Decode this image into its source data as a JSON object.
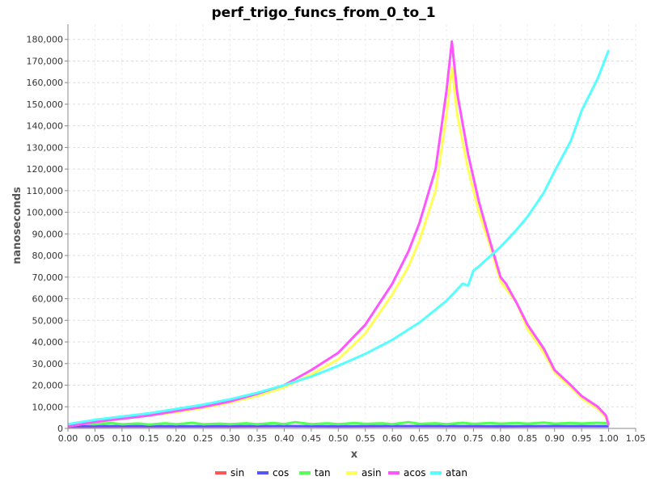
{
  "chart_data": {
    "type": "line",
    "title": "perf_trigo_funcs_from_0_to_1",
    "xlabel": "x",
    "ylabel": "nanoseconds",
    "xlim": [
      0,
      1.05
    ],
    "ylim": [
      0,
      187000
    ],
    "x_ticks": [
      "0.00",
      "0.05",
      "0.10",
      "0.15",
      "0.20",
      "0.25",
      "0.30",
      "0.35",
      "0.40",
      "0.45",
      "0.50",
      "0.55",
      "0.60",
      "0.65",
      "0.70",
      "0.75",
      "0.80",
      "0.85",
      "0.90",
      "0.95",
      "1.00",
      "1.05"
    ],
    "y_ticks": [
      "0",
      "10,000",
      "20,000",
      "30,000",
      "40,000",
      "50,000",
      "60,000",
      "70,000",
      "80,000",
      "90,000",
      "100,000",
      "110,000",
      "120,000",
      "130,000",
      "140,000",
      "150,000",
      "160,000",
      "170,000",
      "180,000"
    ],
    "grid": true,
    "legend": "bottom",
    "series": [
      {
        "name": "sin",
        "color": "#ff5555",
        "x": [
          0,
          0.1,
          0.2,
          0.3,
          0.4,
          0.5,
          0.6,
          0.7,
          0.8,
          0.9,
          1.0
        ],
        "y": [
          800,
          900,
          900,
          900,
          1000,
          900,
          1000,
          1000,
          900,
          1000,
          1000
        ]
      },
      {
        "name": "cos",
        "color": "#5555ff",
        "x": [
          0,
          0.1,
          0.2,
          0.3,
          0.4,
          0.5,
          0.6,
          0.7,
          0.8,
          0.9,
          1.0
        ],
        "y": [
          1000,
          1100,
          1000,
          1100,
          1100,
          1000,
          1100,
          1100,
          1000,
          1100,
          1000
        ]
      },
      {
        "name": "tan",
        "color": "#55ff55",
        "x": [
          0,
          0.02,
          0.05,
          0.08,
          0.1,
          0.13,
          0.15,
          0.18,
          0.2,
          0.23,
          0.25,
          0.28,
          0.3,
          0.33,
          0.35,
          0.38,
          0.4,
          0.42,
          0.45,
          0.48,
          0.5,
          0.53,
          0.55,
          0.58,
          0.6,
          0.63,
          0.65,
          0.68,
          0.7,
          0.73,
          0.75,
          0.78,
          0.8,
          0.83,
          0.85,
          0.88,
          0.9,
          0.93,
          0.95,
          0.98,
          1.0
        ],
        "y": [
          1800,
          2200,
          1900,
          2500,
          1900,
          2300,
          1800,
          2400,
          1900,
          2600,
          1900,
          2200,
          2000,
          2400,
          1900,
          2500,
          2000,
          2900,
          2000,
          2400,
          2000,
          2500,
          2100,
          2400,
          2000,
          2900,
          2100,
          2400,
          2000,
          2600,
          2100,
          2500,
          2200,
          2500,
          2200,
          2700,
          2200,
          2500,
          2300,
          2600,
          2400
        ]
      },
      {
        "name": "asin",
        "color": "#ffff55",
        "x": [
          0,
          0.05,
          0.1,
          0.15,
          0.2,
          0.25,
          0.3,
          0.35,
          0.4,
          0.45,
          0.5,
          0.55,
          0.6,
          0.63,
          0.65,
          0.68,
          0.7,
          0.71,
          0.72,
          0.74,
          0.76,
          0.78,
          0.8,
          0.83,
          0.85,
          0.88,
          0.9,
          0.93,
          0.95,
          0.98,
          0.995,
          1.0
        ],
        "y": [
          1000,
          3000,
          4500,
          6000,
          7500,
          9500,
          12000,
          15000,
          19000,
          25000,
          32000,
          44000,
          62000,
          75000,
          87000,
          110000,
          145000,
          167000,
          145000,
          120000,
          100000,
          85000,
          68000,
          58000,
          46000,
          35000,
          26000,
          19000,
          14000,
          9000,
          5000,
          1500
        ]
      },
      {
        "name": "acos",
        "color": "#ff55ff",
        "x": [
          0,
          0.05,
          0.1,
          0.15,
          0.2,
          0.25,
          0.3,
          0.35,
          0.4,
          0.45,
          0.5,
          0.55,
          0.6,
          0.63,
          0.65,
          0.68,
          0.7,
          0.71,
          0.72,
          0.74,
          0.76,
          0.78,
          0.8,
          0.81,
          0.83,
          0.85,
          0.88,
          0.9,
          0.93,
          0.95,
          0.98,
          0.995,
          1.0
        ],
        "y": [
          1000,
          3000,
          4500,
          6000,
          8000,
          10000,
          12500,
          16000,
          20000,
          27000,
          35000,
          48000,
          67000,
          82000,
          95000,
          120000,
          156000,
          179000,
          155000,
          127000,
          105000,
          87000,
          70000,
          67000,
          58000,
          48000,
          37000,
          27000,
          20000,
          15000,
          10000,
          6000,
          1500
        ]
      },
      {
        "name": "atan",
        "color": "#55ffff",
        "x": [
          0,
          0.05,
          0.1,
          0.15,
          0.2,
          0.25,
          0.3,
          0.35,
          0.4,
          0.45,
          0.5,
          0.55,
          0.6,
          0.65,
          0.7,
          0.73,
          0.74,
          0.75,
          0.76,
          0.8,
          0.83,
          0.85,
          0.88,
          0.9,
          0.93,
          0.95,
          0.98,
          1.0
        ],
        "y": [
          2000,
          4000,
          5500,
          7000,
          9000,
          11000,
          13500,
          16500,
          20000,
          24000,
          29000,
          34500,
          41000,
          49000,
          59000,
          67000,
          66000,
          73000,
          75000,
          84000,
          92000,
          98000,
          109000,
          119000,
          133000,
          147000,
          162000,
          175000
        ]
      }
    ]
  }
}
